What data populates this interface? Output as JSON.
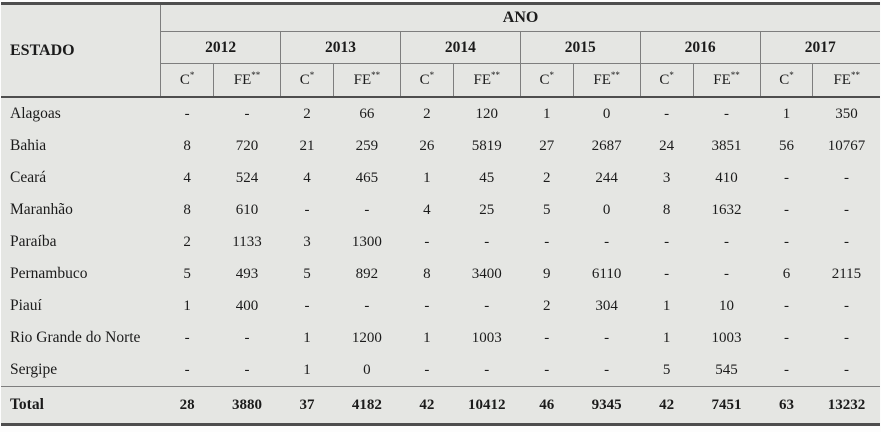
{
  "table": {
    "estado_header": "ESTADO",
    "ano_header": "ANO",
    "years": [
      "2012",
      "2013",
      "2014",
      "2015",
      "2016",
      "2017"
    ],
    "subcols": {
      "c_base": "C",
      "c_sup": "*",
      "fe_base": "FE",
      "fe_sup": "**"
    },
    "rows": [
      {
        "estado": "Alagoas",
        "values": [
          "-",
          "-",
          "2",
          "66",
          "2",
          "120",
          "1",
          "0",
          "-",
          "-",
          "1",
          "350"
        ]
      },
      {
        "estado": "Bahia",
        "values": [
          "8",
          "720",
          "21",
          "259",
          "26",
          "5819",
          "27",
          "2687",
          "24",
          "3851",
          "56",
          "10767"
        ]
      },
      {
        "estado": "Ceará",
        "values": [
          "4",
          "524",
          "4",
          "465",
          "1",
          "45",
          "2",
          "244",
          "3",
          "410",
          "-",
          "-"
        ]
      },
      {
        "estado": "Maranhão",
        "values": [
          "8",
          "610",
          "-",
          "-",
          "4",
          "25",
          "5",
          "0",
          "8",
          "1632",
          "-",
          "-"
        ]
      },
      {
        "estado": "Paraíba",
        "values": [
          "2",
          "1133",
          "3",
          "1300",
          "-",
          "-",
          "-",
          "-",
          "-",
          "-",
          "-",
          "-"
        ]
      },
      {
        "estado": "Pernambuco",
        "values": [
          "5",
          "493",
          "5",
          "892",
          "8",
          "3400",
          "9",
          "6110",
          "-",
          "-",
          "6",
          "2115"
        ]
      },
      {
        "estado": "Piauí",
        "values": [
          "1",
          "400",
          "-",
          "-",
          "-",
          "-",
          "2",
          "304",
          "1",
          "10",
          "-",
          "-"
        ]
      },
      {
        "estado": "Rio Grande do Norte",
        "values": [
          "-",
          "-",
          "1",
          "1200",
          "1",
          "1003",
          "-",
          "-",
          "1",
          "1003",
          "-",
          "-"
        ]
      },
      {
        "estado": "Sergipe",
        "values": [
          "-",
          "-",
          "1",
          "0",
          "-",
          "-",
          "-",
          "-",
          "5",
          "545",
          "-",
          "-"
        ]
      }
    ],
    "total_row": {
      "estado": "Total",
      "values": [
        "28",
        "3880",
        "37",
        "4182",
        "42",
        "10412",
        "46",
        "9345",
        "42",
        "7451",
        "63",
        "13232"
      ]
    }
  },
  "colors": {
    "table_background": "#e5e6e3",
    "thin_border": "#7e7e7e",
    "thick_border": "#4e4e4e",
    "text": "#1b1b1b"
  }
}
